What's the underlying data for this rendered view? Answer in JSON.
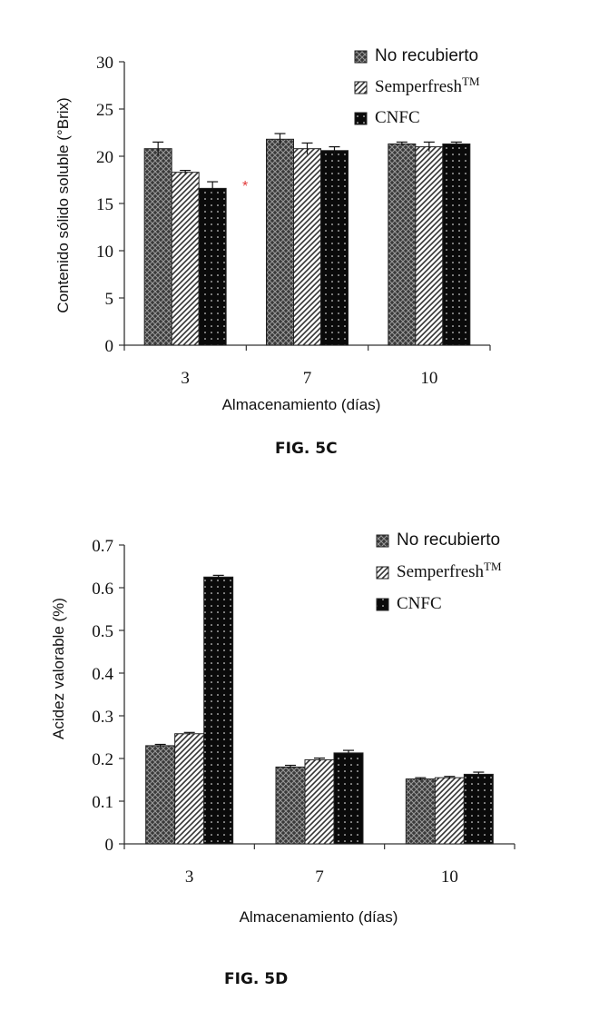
{
  "chart_data": [
    {
      "type": "bar",
      "categories": [
        "3",
        "7",
        "10"
      ],
      "series": [
        {
          "name": "No recubierto",
          "values": [
            20.8,
            21.8,
            21.3
          ],
          "errors": [
            0.7,
            0.6,
            0.2
          ]
        },
        {
          "name": "Semperfresh",
          "name_superscript": "TM",
          "values": [
            18.3,
            20.8,
            21.0
          ],
          "errors": [
            0.2,
            0.6,
            0.5
          ]
        },
        {
          "name": "CNFC",
          "values": [
            16.6,
            20.6,
            21.3
          ],
          "errors": [
            0.7,
            0.4,
            0.2
          ]
        }
      ],
      "ylabel": "Contenido sólido soluble (°Brix)",
      "xlabel": "Almacenamiento (días)",
      "ylim": [
        0,
        30
      ],
      "yticks": [
        0,
        5,
        10,
        15,
        20,
        25,
        30
      ],
      "annotations": [
        "*"
      ],
      "legend": "top-right",
      "figure_label": "FIG. 5C"
    },
    {
      "type": "bar",
      "categories": [
        "3",
        "7",
        "10"
      ],
      "series": [
        {
          "name": "No recubierto",
          "values": [
            0.23,
            0.18,
            0.152
          ],
          "errors": [
            0.003,
            0.004,
            0.003
          ]
        },
        {
          "name": "Semperfresh",
          "name_superscript": "TM",
          "values": [
            0.258,
            0.197,
            0.155
          ],
          "errors": [
            0.003,
            0.004,
            0.003
          ]
        },
        {
          "name": "CNFC",
          "values": [
            0.625,
            0.213,
            0.163
          ],
          "errors": [
            0.004,
            0.006,
            0.005
          ]
        }
      ],
      "ylabel": "Acidez valorable (%)",
      "xlabel": "Almacenamiento (días)",
      "ylim": [
        0,
        0.7
      ],
      "yticks": [
        0,
        0.1,
        0.2,
        0.3,
        0.4,
        0.5,
        0.6,
        0.7
      ],
      "legend": "top-right",
      "figure_label": "FIG. 5D"
    }
  ],
  "colors": {
    "axis": "#333333",
    "dark_pattern": "#3a3a3a",
    "light_pattern": "#ffffff",
    "cnfc_fill": "#0a0a0a",
    "asterisk": "#e23a3a"
  }
}
